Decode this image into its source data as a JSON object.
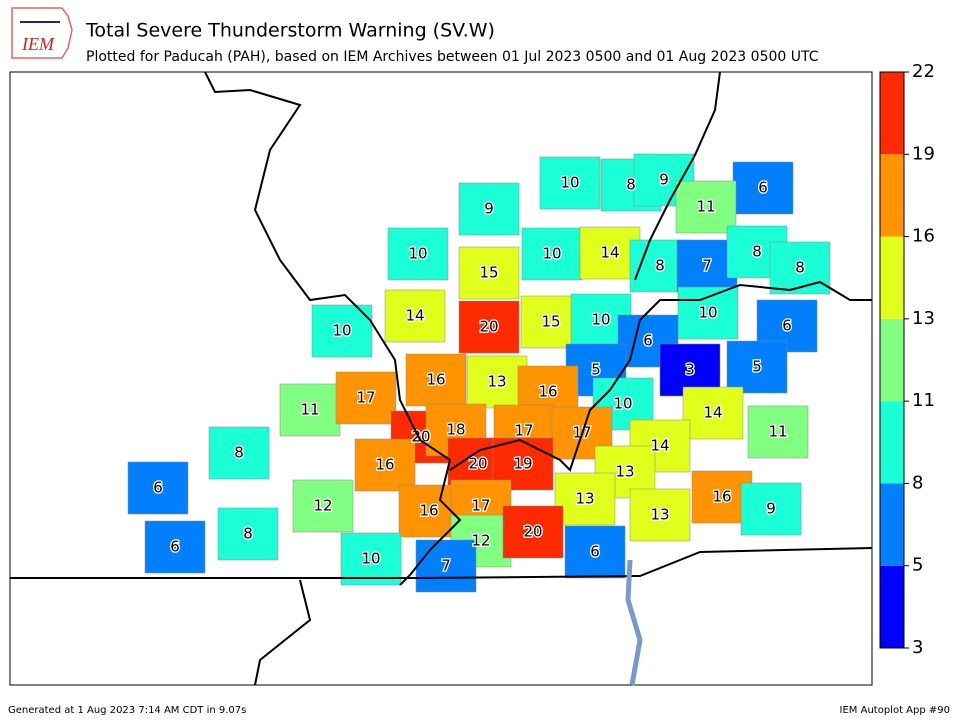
{
  "map": {
    "logo": "IEM",
    "title": "Total Severe Thunderstorm Warning (SV.W)",
    "subtitle": "Plotted for Paducah (PAH), based on IEM Archives  between 01 Jul 2023 0500 and 01 Aug 2023 0500 UTC",
    "footer_left": "Generated at 1 Aug 2023 7:14 AM CDT in 9.07s",
    "footer_right": "IEM Autoplot App #90",
    "colorbar": {
      "ticks": [
        3,
        5,
        8,
        11,
        13,
        16,
        19,
        22
      ],
      "colors": [
        "#0000ff",
        "#0080ff",
        "#1affd5",
        "#80ff80",
        "#e0ff1a",
        "#ff9400",
        "#ff2a00"
      ]
    },
    "counties": [
      10,
      8,
      9,
      6,
      11,
      9,
      10,
      15,
      10,
      14,
      8,
      7,
      8,
      8,
      10,
      14,
      20,
      15,
      10,
      10,
      6,
      6,
      3,
      5,
      5,
      11,
      17,
      16,
      13,
      16,
      10,
      14,
      11,
      8,
      20,
      18,
      17,
      17,
      14,
      16,
      20,
      19,
      13,
      6,
      12,
      16,
      17,
      13,
      13,
      16,
      9,
      6,
      8,
      10,
      12,
      20,
      6,
      7
    ]
  }
}
